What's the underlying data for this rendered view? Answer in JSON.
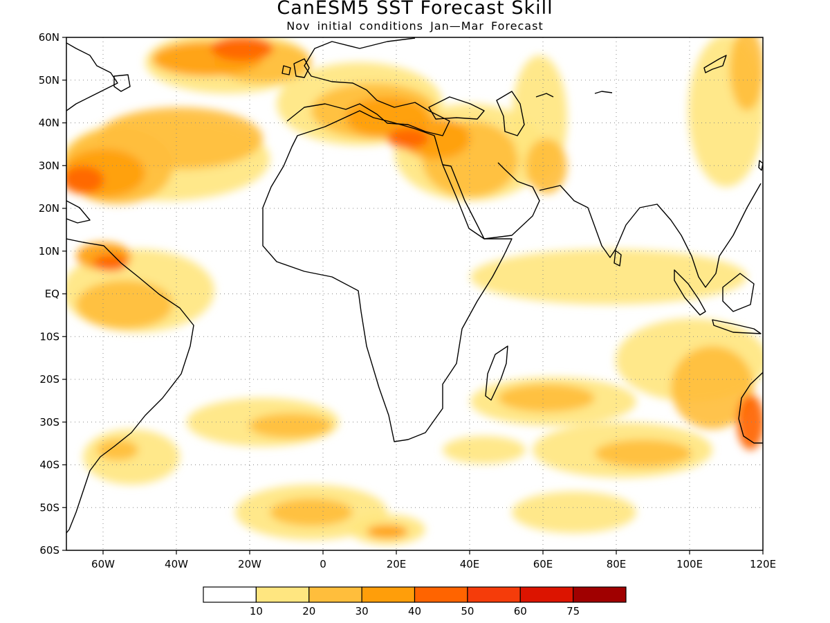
{
  "title": "CanESM5 SST Forecast Skill",
  "subtitle": "Nov initial conditions  Jan—Mar Forecast",
  "map": {
    "lon_range": [
      -70,
      120
    ],
    "lat_range": [
      -60,
      60
    ],
    "lat_ticks": [
      {
        "value": 60,
        "label": "60N"
      },
      {
        "value": 50,
        "label": "50N"
      },
      {
        "value": 40,
        "label": "40N"
      },
      {
        "value": 30,
        "label": "30N"
      },
      {
        "value": 20,
        "label": "20N"
      },
      {
        "value": 10,
        "label": "10N"
      },
      {
        "value": 0,
        "label": "EQ"
      },
      {
        "value": -10,
        "label": "10S"
      },
      {
        "value": -20,
        "label": "20S"
      },
      {
        "value": -30,
        "label": "30S"
      },
      {
        "value": -40,
        "label": "40S"
      },
      {
        "value": -50,
        "label": "50S"
      },
      {
        "value": -60,
        "label": "60S"
      }
    ],
    "lon_ticks": [
      {
        "value": -60,
        "label": "60W"
      },
      {
        "value": -40,
        "label": "40W"
      },
      {
        "value": -20,
        "label": "20W"
      },
      {
        "value": 0,
        "label": "0"
      },
      {
        "value": 20,
        "label": "20E"
      },
      {
        "value": 40,
        "label": "40E"
      },
      {
        "value": 60,
        "label": "60E"
      },
      {
        "value": 80,
        "label": "80E"
      },
      {
        "value": 100,
        "label": "100E"
      },
      {
        "value": 120,
        "label": "120E"
      }
    ],
    "grid": "dotted"
  },
  "colorbar": {
    "colors": [
      "#ffffff",
      "#ffe680",
      "#ffbe3c",
      "#ff9e0a",
      "#ff6400",
      "#f53c0a",
      "#dc1400",
      "#a00000"
    ],
    "labels": [
      "10",
      "20",
      "30",
      "40",
      "50",
      "60",
      "75"
    ]
  }
}
